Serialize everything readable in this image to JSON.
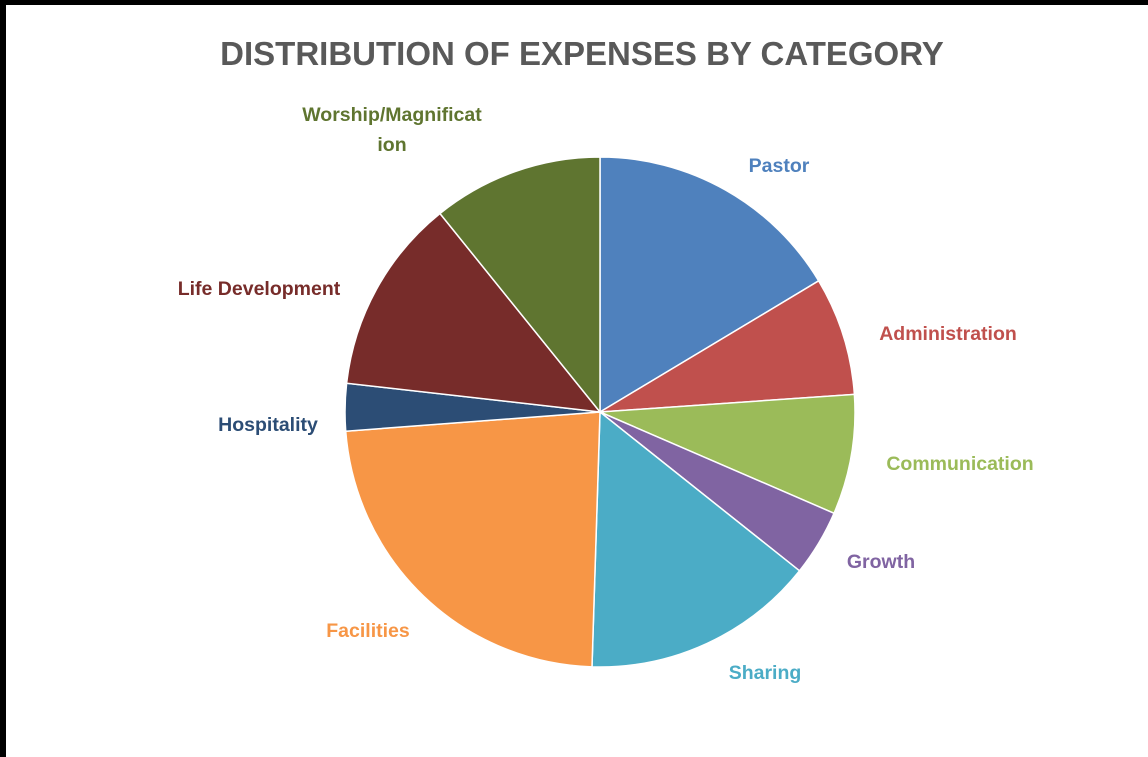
{
  "chart_data": {
    "type": "pie",
    "title": "DISTRIBUTION OF EXPENSES BY CATEGORY",
    "start_angle_deg": 0,
    "direction": "clockwise",
    "data_labels_shown": false,
    "legend": "none",
    "slices": [
      {
        "label": "Pastor",
        "value": 16.4,
        "color": "#4F81BD"
      },
      {
        "label": "Administration",
        "value": 7.5,
        "color": "#C0504D"
      },
      {
        "label": "Communication",
        "value": 7.6,
        "color": "#9BBB59"
      },
      {
        "label": "Growth",
        "value": 4.2,
        "color": "#8064A2"
      },
      {
        "label": "Sharing",
        "value": 14.8,
        "color": "#4BACC6"
      },
      {
        "label": "Facilities",
        "value": 23.3,
        "color": "#F79646"
      },
      {
        "label": "Hospitality",
        "value": 3.0,
        "color": "#2C4D75"
      },
      {
        "label": "Life Development",
        "value": 12.4,
        "color": "#772C2A"
      },
      {
        "label": "Worship/Magnification",
        "label_lines": [
          "Worship/Magnificat",
          "ion"
        ],
        "value": 10.8,
        "color": "#5F7530"
      }
    ]
  }
}
